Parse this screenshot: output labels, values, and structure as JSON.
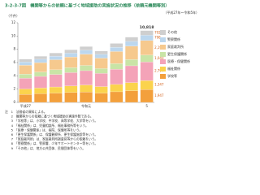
{
  "chart_data": {
    "type": "stacked-bar",
    "title": "3-2-3-7図　機関等からの依頼に基づく地域援助の実施状況の推移（依頼元機関等別）",
    "subtitle": "（平成27年～令和5年）",
    "y_label": "（千件）",
    "categories": [
      "平成27",
      null,
      null,
      null,
      "令和元",
      null,
      null,
      null,
      "5"
    ],
    "ylim": [
      0,
      12
    ],
    "yticks": [
      0,
      2,
      4,
      6,
      8,
      10,
      12
    ],
    "grid": false,
    "legend": "right",
    "series": [
      {
        "name": "学校等",
        "color": "#f3a03c",
        "values": [
          1.21,
          1.305,
          1.402,
          1.488,
          1.571,
          1.402,
          1.598,
          1.765,
          1.947
        ],
        "value_labels": [
          null,
          null,
          null,
          null,
          null,
          null,
          null,
          null,
          "1,947"
        ]
      },
      {
        "name": "福祉関係",
        "color": "#fbd34d",
        "values": [
          0.812,
          0.868,
          0.921,
          0.99,
          1.053,
          0.981,
          1.105,
          1.22,
          1.347
        ],
        "value_labels": [
          null,
          null,
          null,
          null,
          null,
          null,
          null,
          null,
          "1,347"
        ]
      },
      {
        "name": "医療・保健関係",
        "color": "#f4a3b8",
        "values": [
          1.62,
          1.745,
          1.89,
          2.01,
          2.155,
          1.98,
          2.29,
          2.53,
          2.794
        ],
        "value_labels": [
          null,
          null,
          null,
          null,
          null,
          null,
          null,
          null,
          "2,794"
        ]
      },
      {
        "name": "更生保護関係",
        "color": "#c9e4a6",
        "values": [
          0.62,
          0.655,
          0.701,
          0.748,
          0.79,
          0.73,
          0.85,
          0.945,
          1.04
        ],
        "value_labels": [
          null,
          null,
          null,
          null,
          null,
          null,
          null,
          null,
          "1,040"
        ]
      },
      {
        "name": "家庭裁判所",
        "color": "#f6c98e",
        "values": [
          1.34,
          1.42,
          1.515,
          1.61,
          1.702,
          1.58,
          1.82,
          2.01,
          2.19
        ],
        "value_labels": [
          null,
          null,
          null,
          null,
          null,
          null,
          null,
          null,
          "2,190"
        ]
      },
      {
        "name": "警察関係",
        "color": "#bcd7ee",
        "values": [
          0.48,
          0.505,
          0.54,
          0.57,
          0.602,
          0.56,
          0.645,
          0.72,
          0.798
        ],
        "value_labels": [
          null,
          null,
          null,
          null,
          null,
          null,
          null,
          null,
          "798"
        ]
      },
      {
        "name": "その他",
        "color": "#cfcfcf",
        "values": [
          0.43,
          0.455,
          0.48,
          0.51,
          0.54,
          0.5,
          0.575,
          0.64,
          0.702
        ],
        "value_labels": [
          null,
          null,
          null,
          null,
          null,
          null,
          null,
          null,
          "702"
        ]
      }
    ],
    "total": {
      "value": 10.818,
      "label": "10,818"
    },
    "notes": [
      "注　1　法務省の資料による。",
      "　　2　機関等からの依頼に基づく地域援助の実施件数である。",
      "　　3　「学校等」は、小学校、中学校、高等学校、大学等をいう。",
      "　　4　「福祉関係」は、児童相談所、福祉事務所等をいう。",
      "　　5　「医療・保健関係」は、病院、保健所等をいう。",
      "　　6　「更生保護関係」は、保護観察所、更生保護施設等をいう。",
      "　　7　「家庭裁判所」は、家庭裁判所調査官等からの依頼をいう。",
      "　　8　「警察関係」は、警察署、少年サポートセンター等をいう。",
      "　　9　「その他」は、地方公共団体、民間団体等をいう。"
    ]
  }
}
